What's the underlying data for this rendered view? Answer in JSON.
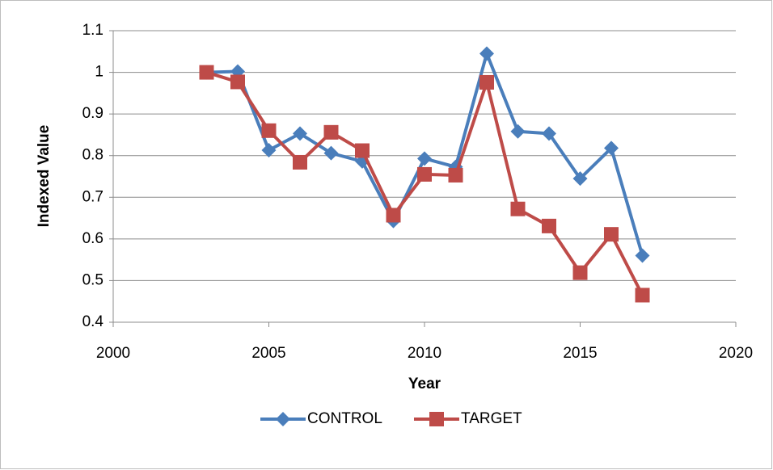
{
  "chart_data": {
    "type": "line",
    "x_label": "Year",
    "y_label": "Indexed Value",
    "x": [
      2003,
      2004,
      2005,
      2006,
      2007,
      2008,
      2009,
      2010,
      2011,
      2012,
      2013,
      2014,
      2015,
      2016,
      2017
    ],
    "series": [
      {
        "name": "CONTROL",
        "color": "#4a7ebb",
        "marker": "diamond",
        "values": [
          1.0,
          1.002,
          0.813,
          0.853,
          0.806,
          0.786,
          0.643,
          0.793,
          0.773,
          1.045,
          0.858,
          0.853,
          0.745,
          0.818,
          0.56
        ]
      },
      {
        "name": "TARGET",
        "color": "#be4b48",
        "marker": "square",
        "values": [
          1.0,
          0.977,
          0.86,
          0.784,
          0.856,
          0.812,
          0.657,
          0.755,
          0.753,
          0.976,
          0.672,
          0.631,
          0.519,
          0.611,
          0.465
        ]
      }
    ],
    "xlim": [
      2000,
      2020
    ],
    "xticks": [
      2000,
      2005,
      2010,
      2015,
      2020
    ],
    "ylim": [
      0.4,
      1.1
    ],
    "yticks": [
      0.4,
      0.5,
      0.6,
      0.7,
      0.8,
      0.9,
      1,
      1.1
    ],
    "grid": true,
    "legend": "bottom"
  }
}
